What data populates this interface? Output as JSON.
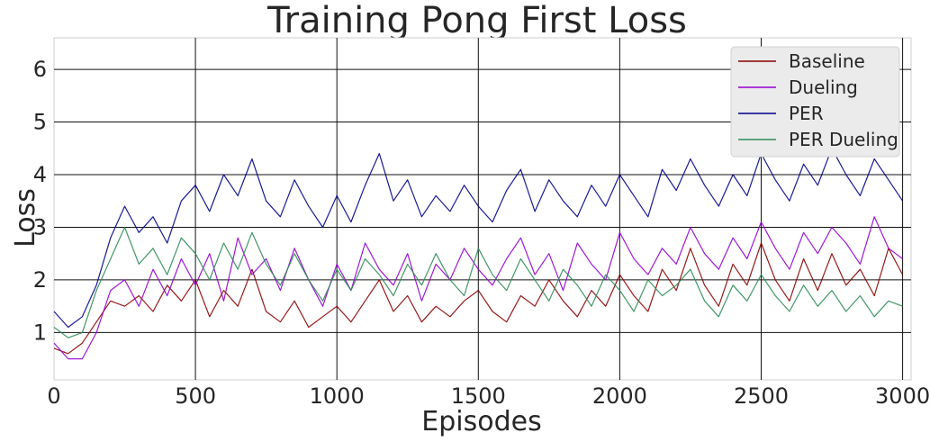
{
  "chart_data": {
    "type": "line",
    "title": "Training Pong First Loss",
    "xlabel": "Episodes",
    "ylabel": "Loss",
    "xlim": [
      0,
      3030
    ],
    "ylim": [
      0.1,
      6.6
    ],
    "x_ticks": [
      0,
      500,
      1000,
      1500,
      2000,
      2500,
      3000
    ],
    "y_ticks": [
      1,
      2,
      3,
      4,
      5,
      6
    ],
    "grid": true,
    "legend_position": "top-right",
    "series": [
      {
        "name": "Baseline",
        "color": "#8b0000",
        "x": [
          0,
          50,
          100,
          150,
          200,
          250,
          300,
          350,
          400,
          450,
          500,
          550,
          600,
          650,
          700,
          750,
          800,
          850,
          900,
          950,
          1000,
          1050,
          1100,
          1150,
          1200,
          1250,
          1300,
          1350,
          1400,
          1450,
          1500,
          1550,
          1600,
          1650,
          1700,
          1750,
          1800,
          1850,
          1900,
          1950,
          2000,
          2050,
          2100,
          2150,
          2200,
          2250,
          2300,
          2350,
          2400,
          2450,
          2500,
          2550,
          2600,
          2650,
          2700,
          2750,
          2800,
          2850,
          2900,
          2950,
          3000
        ],
        "y": [
          0.7,
          0.6,
          0.8,
          1.2,
          1.6,
          1.5,
          1.7,
          1.4,
          1.9,
          1.6,
          2.0,
          1.3,
          1.8,
          1.5,
          2.2,
          1.4,
          1.2,
          1.6,
          1.1,
          1.3,
          1.5,
          1.2,
          1.6,
          2.0,
          1.4,
          1.7,
          1.2,
          1.5,
          1.3,
          1.6,
          1.8,
          1.4,
          1.2,
          1.7,
          1.5,
          2.0,
          1.6,
          1.3,
          1.8,
          1.5,
          2.1,
          1.7,
          1.4,
          2.2,
          1.8,
          2.6,
          1.9,
          1.5,
          2.3,
          1.9,
          2.7,
          2.0,
          1.6,
          2.4,
          1.8,
          2.5,
          1.9,
          2.2,
          1.7,
          2.6,
          2.1
        ]
      },
      {
        "name": "Dueling",
        "color": "#9400d3",
        "x": [
          0,
          50,
          100,
          150,
          200,
          250,
          300,
          350,
          400,
          450,
          500,
          550,
          600,
          650,
          700,
          750,
          800,
          850,
          900,
          950,
          1000,
          1050,
          1100,
          1150,
          1200,
          1250,
          1300,
          1350,
          1400,
          1450,
          1500,
          1550,
          1600,
          1650,
          1700,
          1750,
          1800,
          1850,
          1900,
          1950,
          2000,
          2050,
          2100,
          2150,
          2200,
          2250,
          2300,
          2350,
          2400,
          2450,
          2500,
          2550,
          2600,
          2650,
          2700,
          2750,
          2800,
          2850,
          2900,
          2950,
          3000
        ],
        "y": [
          0.8,
          0.5,
          0.5,
          1.0,
          1.8,
          2.0,
          1.5,
          2.2,
          1.7,
          2.4,
          1.9,
          2.5,
          1.6,
          2.8,
          2.1,
          2.4,
          1.8,
          2.6,
          2.0,
          1.5,
          2.3,
          1.8,
          2.7,
          2.2,
          1.9,
          2.5,
          1.6,
          2.3,
          2.0,
          2.6,
          2.2,
          1.9,
          2.4,
          2.8,
          2.1,
          2.5,
          1.8,
          2.7,
          2.3,
          2.0,
          2.9,
          2.4,
          2.1,
          2.6,
          2.3,
          3.0,
          2.5,
          2.2,
          2.8,
          2.4,
          3.1,
          2.6,
          2.2,
          2.9,
          2.5,
          3.0,
          2.7,
          2.3,
          3.2,
          2.6,
          2.4
        ]
      },
      {
        "name": "PER",
        "color": "#00008b",
        "x": [
          0,
          50,
          100,
          150,
          200,
          250,
          300,
          350,
          400,
          450,
          500,
          550,
          600,
          650,
          700,
          750,
          800,
          850,
          900,
          950,
          1000,
          1050,
          1100,
          1150,
          1200,
          1250,
          1300,
          1350,
          1400,
          1450,
          1500,
          1550,
          1600,
          1650,
          1700,
          1750,
          1800,
          1850,
          1900,
          1950,
          2000,
          2050,
          2100,
          2150,
          2200,
          2250,
          2300,
          2350,
          2400,
          2450,
          2500,
          2550,
          2600,
          2650,
          2700,
          2750,
          2800,
          2850,
          2900,
          2950,
          3000
        ],
        "y": [
          1.4,
          1.1,
          1.3,
          1.9,
          2.8,
          3.4,
          2.9,
          3.2,
          2.7,
          3.5,
          3.8,
          3.3,
          4.0,
          3.6,
          4.3,
          3.5,
          3.2,
          3.9,
          3.4,
          3.0,
          3.6,
          3.1,
          3.8,
          4.4,
          3.5,
          3.9,
          3.2,
          3.6,
          3.3,
          3.8,
          3.4,
          3.1,
          3.7,
          4.1,
          3.3,
          3.9,
          3.5,
          3.2,
          3.8,
          3.4,
          4.0,
          3.6,
          3.2,
          4.1,
          3.7,
          4.3,
          3.8,
          3.4,
          4.0,
          3.6,
          4.4,
          3.9,
          3.5,
          4.2,
          3.8,
          4.5,
          4.0,
          3.6,
          4.3,
          3.9,
          3.5
        ]
      },
      {
        "name": "PER Dueling",
        "color": "#2e8b57",
        "x": [
          0,
          50,
          100,
          150,
          200,
          250,
          300,
          350,
          400,
          450,
          500,
          550,
          600,
          650,
          700,
          750,
          800,
          850,
          900,
          950,
          1000,
          1050,
          1100,
          1150,
          1200,
          1250,
          1300,
          1350,
          1400,
          1450,
          1500,
          1550,
          1600,
          1650,
          1700,
          1750,
          1800,
          1850,
          1900,
          1950,
          2000,
          2050,
          2100,
          2150,
          2200,
          2250,
          2300,
          2350,
          2400,
          2450,
          2500,
          2550,
          2600,
          2650,
          2700,
          2750,
          2800,
          2850,
          2900,
          2950,
          3000
        ],
        "y": [
          1.1,
          0.9,
          1.0,
          1.8,
          2.4,
          3.0,
          2.3,
          2.6,
          2.1,
          2.8,
          2.5,
          2.0,
          2.7,
          2.2,
          2.9,
          2.3,
          1.9,
          2.5,
          2.0,
          1.6,
          2.2,
          1.8,
          2.4,
          2.1,
          1.7,
          2.3,
          1.9,
          2.5,
          2.0,
          1.7,
          2.6,
          2.1,
          1.8,
          2.4,
          2.0,
          1.6,
          2.2,
          1.9,
          1.5,
          2.1,
          1.8,
          1.4,
          2.0,
          1.7,
          1.9,
          2.2,
          1.6,
          1.3,
          1.9,
          1.6,
          2.1,
          1.7,
          1.4,
          1.9,
          1.5,
          1.8,
          1.4,
          1.7,
          1.3,
          1.6,
          1.5
        ]
      }
    ]
  }
}
